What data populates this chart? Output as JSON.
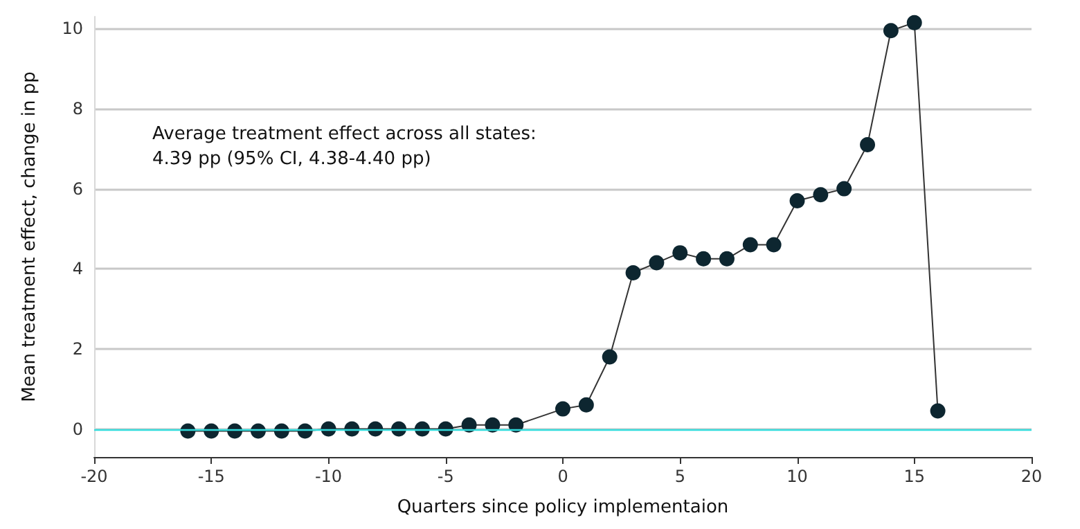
{
  "chart_data": {
    "type": "line",
    "xlabel": "Quarters since policy implementaion",
    "ylabel": "Mean treatment effect, change in pp",
    "annotations": [
      "Average treatment effect across all states:\n4.39 pp (95% CI, 4.38-4.40 pp)"
    ],
    "x": [
      -16,
      -15,
      -14,
      -13,
      -12,
      -11,
      -10,
      -9,
      -8,
      -7,
      -6,
      -5,
      -4,
      -3,
      -2,
      0,
      1,
      2,
      3,
      4,
      5,
      6,
      7,
      8,
      9,
      10,
      11,
      12,
      13,
      14,
      15,
      16
    ],
    "series": [
      {
        "color": "#0d2630",
        "values": [
          -0.05,
          -0.05,
          -0.05,
          -0.05,
          -0.05,
          -0.05,
          0,
          0,
          0,
          0,
          0,
          0,
          0.1,
          0.1,
          0.1,
          0.5,
          0.6,
          1.8,
          3.9,
          4.15,
          4.4,
          4.25,
          4.25,
          4.6,
          4.6,
          5.7,
          5.85,
          6.0,
          7.1,
          9.95,
          10.15,
          0.45
        ]
      }
    ],
    "xlim": [
      -20,
      20
    ],
    "xticks": [
      -20,
      -15,
      -10,
      -5,
      0,
      5,
      10,
      15,
      20
    ],
    "ylim": [
      -0.7,
      10.3
    ],
    "yticks": [
      0,
      2,
      4,
      6,
      8,
      10
    ],
    "ref_lines": [
      {
        "axis": "y",
        "value": 0,
        "color": "#33dddd"
      }
    ],
    "grid": "y",
    "marker": "circle",
    "line_style": "solid"
  }
}
